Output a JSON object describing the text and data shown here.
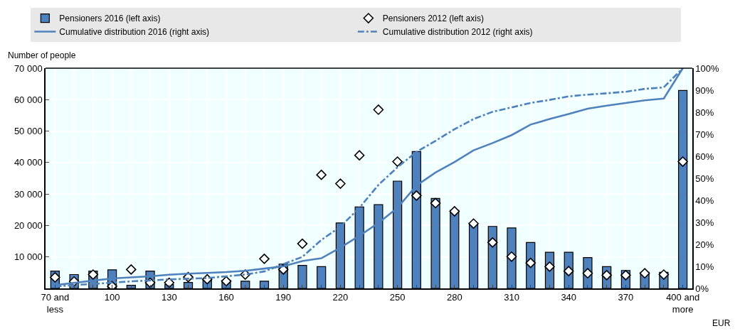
{
  "chart_data": {
    "type": "bar",
    "xlabel": "EUR",
    "ylabel": "Number of people",
    "categories": [
      "70 and less",
      null,
      null,
      "100",
      null,
      null,
      "130",
      null,
      null,
      "160",
      null,
      null,
      "190",
      null,
      null,
      "220",
      null,
      null,
      "250",
      null,
      null,
      "280",
      null,
      null,
      "310",
      null,
      null,
      "340",
      null,
      null,
      "370",
      null,
      null,
      "400 and more"
    ],
    "series": [
      {
        "name": "Pensioners 2016 (left axis)",
        "color": "#4f81bd",
        "values": [
          5500,
          4400,
          5500,
          5900,
          1000,
          5500,
          1200,
          1900,
          2900,
          2500,
          2300,
          2300,
          7700,
          7300,
          6900,
          20800,
          25900,
          26600,
          34100,
          43500,
          28600,
          24800,
          20300,
          19700,
          19200,
          14600,
          11500,
          11500,
          9800,
          6900,
          5700,
          5100,
          5100,
          62900
        ]
      },
      {
        "name": "Pensioners 2012 (left axis)",
        "type": "scatter",
        "marker": "diamond",
        "color": "#ffffff",
        "values": [
          3500,
          2200,
          4400,
          700,
          6000,
          1800,
          1800,
          3600,
          2900,
          2300,
          4400,
          9400,
          6000,
          14200,
          36100,
          33300,
          42300,
          56800,
          40300,
          29500,
          27100,
          24500,
          20600,
          14600,
          10100,
          8100,
          6900,
          5500,
          4800,
          4200,
          4200,
          4800,
          4400,
          40300
        ]
      },
      {
        "name": "Cumulative distribution 2016 (right axis)",
        "type": "line",
        "axis": "y2",
        "line_style": "solid",
        "color": "#4f81bd",
        "values": [
          1.5,
          2.5,
          3.5,
          4.5,
          5,
          5.5,
          6.2,
          6.7,
          7,
          7.4,
          8,
          9,
          10,
          12.4,
          13.7,
          18.5,
          23.9,
          29.7,
          36.6,
          46.7,
          52.6,
          57.4,
          62.7,
          66,
          69.6,
          74.4,
          76.9,
          79.2,
          81.6,
          83,
          84.2,
          85.4,
          86.2,
          100
        ]
      },
      {
        "name": "Cumulative distribution 2012 (right axis)",
        "type": "line",
        "axis": "y2",
        "line_style": "dashdot",
        "color": "#4f81bd",
        "values": [
          0.9,
          1.5,
          2,
          2.6,
          3.2,
          3.6,
          4.1,
          4.4,
          4.7,
          5.5,
          6.3,
          7.7,
          11,
          14.3,
          22,
          28,
          36.6,
          47,
          55,
          62,
          67,
          72.3,
          76.9,
          80.2,
          82.2,
          84.2,
          85.6,
          87.2,
          88,
          88.6,
          89.3,
          90.6,
          91.3,
          100
        ]
      }
    ],
    "ylim": [
      0,
      70000
    ],
    "yticks": [
      {
        "value": 0,
        "label": null
      },
      {
        "value": 10000,
        "label": "10 000"
      },
      {
        "value": 20000,
        "label": "20 000"
      },
      {
        "value": 30000,
        "label": "30 000"
      },
      {
        "value": 40000,
        "label": "40 000"
      },
      {
        "value": 50000,
        "label": "50 000"
      },
      {
        "value": 60000,
        "label": "60 000"
      },
      {
        "value": 70000,
        "label": "70 000"
      }
    ],
    "y2lim": [
      0,
      100
    ],
    "y2ticks": [
      {
        "value": 0,
        "label": "0%"
      },
      {
        "value": 10,
        "label": "10%"
      },
      {
        "value": 20,
        "label": "20%"
      },
      {
        "value": 30,
        "label": "30%"
      },
      {
        "value": 40,
        "label": "40%"
      },
      {
        "value": 50,
        "label": "50%"
      },
      {
        "value": 60,
        "label": "60%"
      },
      {
        "value": 70,
        "label": "70%"
      },
      {
        "value": 80,
        "label": "80%"
      },
      {
        "value": 90,
        "label": "90%"
      },
      {
        "value": 100,
        "label": "100%"
      }
    ],
    "grid": true,
    "legend": "top"
  }
}
